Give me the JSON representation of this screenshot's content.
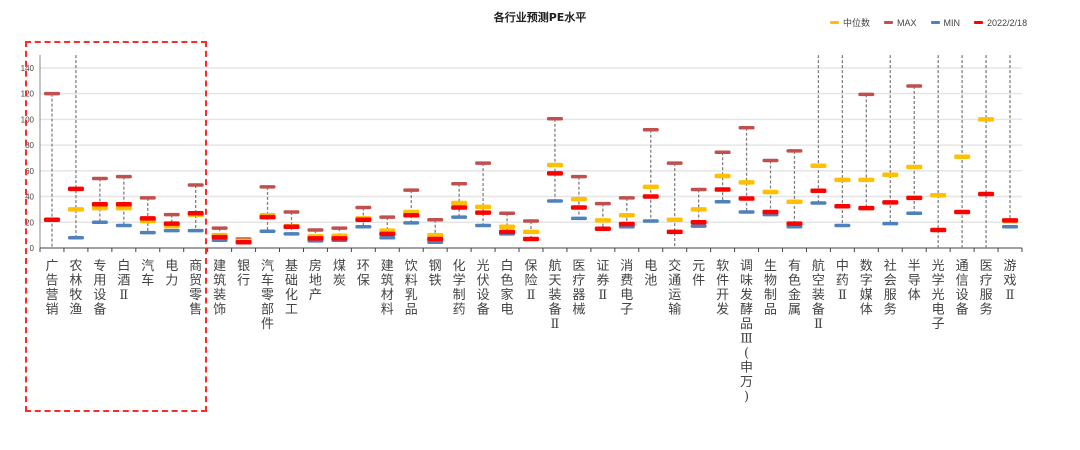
{
  "colors": {
    "median": "#ffc000",
    "max": "#c0504d",
    "min": "#4f81bd",
    "current": "#ff0000",
    "grid": "#e6e6e6",
    "whisker": "#808080",
    "highlight": "#ff2a2a"
  },
  "legend": [
    {
      "key": "median",
      "label": "中位数"
    },
    {
      "key": "max",
      "label": "MAX"
    },
    {
      "key": "min",
      "label": "MIN"
    },
    {
      "key": "current",
      "label": "2022/2/18"
    }
  ],
  "chart_data": {
    "type": "scatter",
    "title": "各行业预测PE水平",
    "xlabel": "",
    "ylabel": "",
    "ylim": [
      0,
      150
    ],
    "yticks": [
      0,
      20,
      40,
      60,
      80,
      100,
      120,
      140
    ],
    "grid": true,
    "legend_position": "top-right",
    "note": "Floating range markers per industry: MAX, MIN, median (中位数) and value on 2022/2/18; null = marker off-scale/not visible. Dashed red box highlights the first 7 industries.",
    "highlight_range": [
      0,
      6
    ],
    "categories": [
      "广告营销",
      "农林牧渔",
      "专用设备",
      "白酒Ⅱ",
      "汽车",
      "电力",
      "商贸零售",
      "建筑装饰",
      "银行",
      "汽车零部件",
      "基础化工",
      "房地产",
      "煤炭",
      "环保",
      "建筑材料",
      "饮料乳品",
      "钢铁",
      "化学制药",
      "光伏设备",
      "白色家电",
      "保险Ⅱ",
      "航天装备Ⅱ",
      "医疗器械",
      "证券Ⅱ",
      "消费电子",
      "电池",
      "交通运输",
      "元件",
      "软件开发",
      "调味发酵品Ⅲ(申万)",
      "生物制品",
      "有色金属",
      "航空装备Ⅱ",
      "中药Ⅱ",
      "数字媒体",
      "社会服务",
      "半导体",
      "光学光电子",
      "通信设备",
      "医疗服务",
      "游戏Ⅱ"
    ],
    "series": [
      {
        "name": "MAX",
        "key": "max",
        "values": [
          120,
          150,
          54,
          55.5,
          39,
          26,
          49,
          15.5,
          7,
          47.5,
          28,
          14,
          15.5,
          31.5,
          24,
          45,
          22,
          50,
          66,
          27,
          21,
          100.5,
          55.5,
          34.5,
          39,
          92,
          66,
          45.5,
          74.5,
          93.5,
          68,
          75.5,
          150,
          150,
          119.5,
          150,
          126,
          150,
          150,
          150,
          150
        ]
      },
      {
        "name": "MIN",
        "key": "min",
        "values": [
          null,
          8,
          20,
          17.5,
          12,
          13.5,
          13.5,
          6,
          4.5,
          13,
          11,
          5.5,
          6,
          16.5,
          8,
          19.5,
          4.5,
          24,
          17.5,
          11,
          7,
          36.5,
          23,
          15,
          16.5,
          21,
          null,
          17,
          36,
          28,
          26,
          16.5,
          35,
          17.5,
          31,
          19,
          27,
          null,
          null,
          null,
          16.5
        ]
      },
      {
        "name": "中位数",
        "key": "median",
        "values": [
          22,
          30,
          31,
          31,
          21,
          17,
          26,
          10,
          5.5,
          25.5,
          17,
          9,
          9.5,
          23,
          13.5,
          28,
          10,
          35,
          32,
          16.5,
          12.5,
          64.5,
          38,
          21.5,
          25.5,
          47.5,
          22,
          30,
          56,
          51,
          43.5,
          36,
          64,
          53,
          53,
          57,
          63,
          41,
          71,
          100,
          21
        ]
      },
      {
        "name": "2022/2/18",
        "key": "current",
        "values": [
          22,
          46,
          34,
          34,
          23,
          19,
          27,
          8.5,
          4.5,
          24,
          16.5,
          7.5,
          7.5,
          22,
          11,
          25.5,
          7,
          31.5,
          27.5,
          12.5,
          7,
          58,
          31.5,
          15,
          18.7,
          40,
          12.5,
          20,
          45.5,
          38.5,
          28,
          19,
          44.5,
          32.5,
          31,
          35.5,
          39,
          14,
          28,
          42,
          21.5
        ]
      }
    ]
  }
}
